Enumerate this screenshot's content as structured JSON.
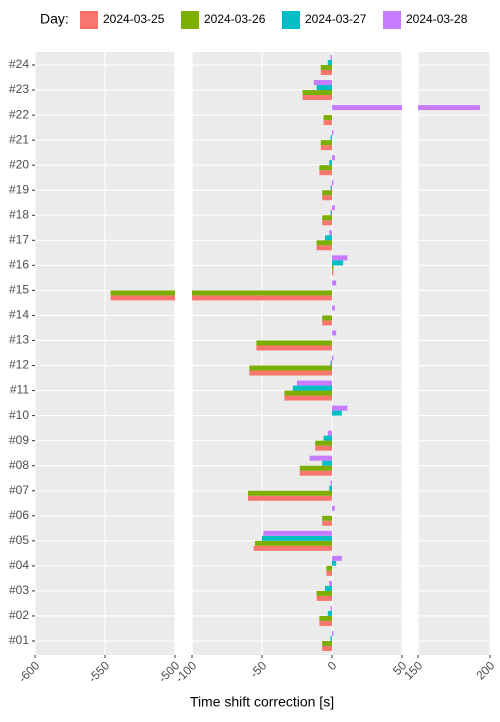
{
  "chart_data": {
    "type": "bar",
    "orientation": "horizontal",
    "x_label": "Time shift correction [s]",
    "legend_title": "Day:",
    "legend_position": "top",
    "categories": [
      "#01",
      "#02",
      "#03",
      "#04",
      "#05",
      "#06",
      "#07",
      "#08",
      "#09",
      "#10",
      "#11",
      "#12",
      "#13",
      "#14",
      "#15",
      "#16",
      "#17",
      "#18",
      "#19",
      "#20",
      "#21",
      "#22",
      "#23",
      "#24"
    ],
    "series": [
      {
        "name": "2024-03-25",
        "color": "#F8766D",
        "values": [
          -7,
          -9,
          -11,
          -4,
          -56,
          -7,
          -60,
          -23,
          -12,
          0,
          -34,
          -59,
          -54,
          -7,
          -546,
          1,
          -11,
          -7,
          -7,
          -9,
          -8,
          -6,
          -21,
          -8
        ]
      },
      {
        "name": "2024-03-26",
        "color": "#7CAE00",
        "values": [
          -7,
          -9,
          -11,
          -4,
          -55,
          -7,
          -60,
          -23,
          -12,
          0,
          -34,
          -59,
          -54,
          -7,
          -546,
          1,
          -11,
          -7,
          -7,
          -9,
          -8,
          -6,
          -21,
          -8
        ]
      },
      {
        "name": "2024-03-27",
        "color": "#00BFC4",
        "values": [
          -1,
          -3,
          -5,
          3,
          -50,
          0,
          -2,
          -7,
          -6,
          7,
          -28,
          -1,
          0,
          0,
          0,
          8,
          -5,
          -1,
          -1,
          -2,
          -1,
          0,
          -11,
          -3
        ]
      },
      {
        "name": "2024-03-28",
        "color": "#C77CFF",
        "values": [
          1,
          -1,
          -2,
          7,
          -49,
          2,
          -1,
          -16,
          -3,
          11,
          -25,
          1,
          3,
          2,
          3,
          11,
          -2,
          2,
          1,
          2,
          1,
          193,
          -13,
          -1
        ]
      }
    ],
    "panels": [
      {
        "xlim": [
          -600,
          -500
        ],
        "xticks": [
          -600,
          -550,
          -500
        ]
      },
      {
        "xlim": [
          -100,
          50
        ],
        "xticks": [
          -100,
          -50,
          0,
          50
        ]
      },
      {
        "xlim": [
          150,
          200
        ],
        "xticks": [
          150,
          200
        ]
      }
    ],
    "grid": true
  }
}
